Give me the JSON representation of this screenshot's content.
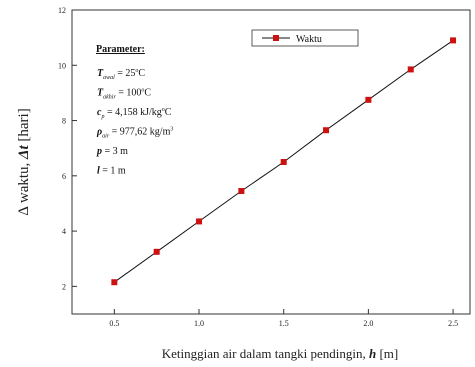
{
  "chart_data": {
    "type": "line",
    "xlabel_text": "Ketinggian air dalam tangki pendingin,",
    "xlabel_var": "h",
    "xlabel_unit": "[m]",
    "ylabel_prefix": "Δ waktu,",
    "ylabel_var": "Δt",
    "ylabel_unit": "[hari]",
    "xlim": [
      0.25,
      2.6
    ],
    "ylim": [
      1,
      12
    ],
    "x_ticks": [
      0.5,
      1.0,
      1.5,
      2.0,
      2.5
    ],
    "x_tick_labels": [
      "0.5",
      "1.0",
      "1.5",
      "2.0",
      "2.5"
    ],
    "y_ticks": [
      2,
      4,
      6,
      8,
      10,
      12
    ],
    "y_tick_labels": [
      "2",
      "4",
      "6",
      "8",
      "10",
      "12"
    ],
    "legend_position": "top-center",
    "grid": false,
    "series": [
      {
        "name": "Waktu",
        "color": "#cc1111",
        "marker": "square",
        "x": [
          0.5,
          0.75,
          1.0,
          1.25,
          1.5,
          1.75,
          2.0,
          2.25,
          2.5
        ],
        "y": [
          2.15,
          3.25,
          4.35,
          5.45,
          6.5,
          7.65,
          8.75,
          9.85,
          10.9
        ]
      }
    ],
    "annotation": {
      "heading": "Parameter:",
      "lines": [
        {
          "var": "T",
          "sub": "awal",
          "rest": "= 25",
          "sup": "o",
          "after": "C"
        },
        {
          "var": "T",
          "sub": "akhir",
          "rest": "= 100",
          "sup": "o",
          "after": "C"
        },
        {
          "var": "c",
          "sub": "p",
          "rest": "= 4,158 kJ/kg",
          "sup": "o",
          "after": "C"
        },
        {
          "var": "ρ",
          "sub": "air",
          "rest": "= 977,62 kg/m",
          "sup": "3",
          "after": ""
        },
        {
          "var": "p",
          "sub": "",
          "rest": "= 3 m",
          "sup": "",
          "after": ""
        },
        {
          "var": "l",
          "sub": "",
          "rest": "= 1 m",
          "sup": "",
          "after": ""
        }
      ]
    }
  }
}
